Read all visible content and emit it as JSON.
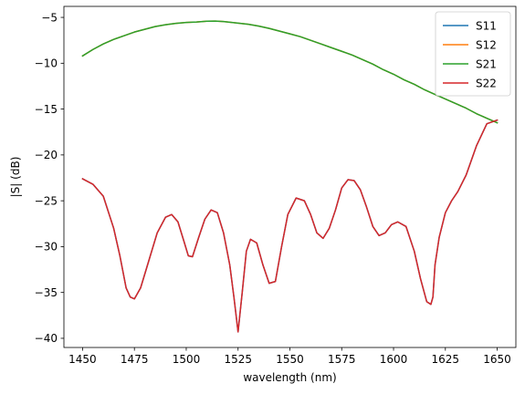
{
  "chart_data": {
    "type": "line",
    "xlabel": "wavelength (nm)",
    "ylabel": "|S| (dB)",
    "xlim": [
      1441,
      1659
    ],
    "ylim": [
      -41,
      -3.8
    ],
    "xticks": [
      1450,
      1475,
      1500,
      1525,
      1550,
      1575,
      1600,
      1625,
      1650
    ],
    "yticks": [
      -40,
      -35,
      -30,
      -25,
      -20,
      -15,
      -10,
      -5
    ],
    "grid": false,
    "legend_position": "top-right",
    "series": [
      {
        "name": "S11",
        "color": "#1f77b4",
        "x": [
          1450,
          1455,
          1460,
          1465,
          1468,
          1471,
          1473,
          1475,
          1478,
          1482,
          1486,
          1490,
          1493,
          1496,
          1499,
          1501,
          1503,
          1506,
          1509,
          1512,
          1515,
          1518,
          1521,
          1523,
          1525,
          1527,
          1529,
          1531,
          1534,
          1537,
          1540,
          1543,
          1546,
          1549,
          1553,
          1557,
          1560,
          1563,
          1566,
          1569,
          1572,
          1575,
          1578,
          1581,
          1584,
          1587,
          1590,
          1593,
          1596,
          1599,
          1602,
          1606,
          1610,
          1613,
          1616,
          1618,
          1619,
          1620,
          1622,
          1625,
          1628,
          1631,
          1635,
          1640,
          1645,
          1650
        ],
        "y": [
          -22.6,
          -23.2,
          -24.5,
          -28,
          -31,
          -34.5,
          -35.5,
          -35.7,
          -34.5,
          -31.5,
          -28.5,
          -26.8,
          -26.5,
          -27.3,
          -29.5,
          -31,
          -31.1,
          -29,
          -27,
          -26,
          -26.3,
          -28.5,
          -32,
          -35.5,
          -39.3,
          -35,
          -30.5,
          -29.2,
          -29.6,
          -32,
          -34,
          -33.8,
          -30,
          -26.5,
          -24.7,
          -25,
          -26.5,
          -28.5,
          -29.1,
          -28,
          -26,
          -23.6,
          -22.7,
          -22.8,
          -23.8,
          -25.7,
          -27.8,
          -28.8,
          -28.5,
          -27.6,
          -27.3,
          -27.8,
          -30.5,
          -33.5,
          -36,
          -36.3,
          -35.5,
          -32,
          -29,
          -26.3,
          -25,
          -24,
          -22.2,
          -19,
          -16.6,
          -16.2
        ]
      },
      {
        "name": "S12",
        "color": "#ff7f0e",
        "x": [
          1450,
          1455,
          1460,
          1465,
          1470,
          1475,
          1480,
          1485,
          1490,
          1495,
          1500,
          1505,
          1510,
          1514,
          1518,
          1522,
          1526,
          1530,
          1535,
          1540,
          1545,
          1550,
          1555,
          1560,
          1565,
          1570,
          1575,
          1580,
          1585,
          1590,
          1595,
          1600,
          1605,
          1610,
          1615,
          1620,
          1625,
          1630,
          1635,
          1640,
          1645,
          1650
        ],
        "y": [
          -9.2,
          -8.5,
          -7.9,
          -7.4,
          -7,
          -6.6,
          -6.3,
          -6,
          -5.8,
          -5.65,
          -5.55,
          -5.5,
          -5.42,
          -5.4,
          -5.45,
          -5.55,
          -5.65,
          -5.75,
          -5.95,
          -6.2,
          -6.5,
          -6.8,
          -7.1,
          -7.5,
          -7.9,
          -8.3,
          -8.7,
          -9.1,
          -9.6,
          -10.1,
          -10.7,
          -11.2,
          -11.8,
          -12.3,
          -12.9,
          -13.4,
          -13.9,
          -14.4,
          -14.9,
          -15.5,
          -16,
          -16.5
        ]
      },
      {
        "name": "S21",
        "color": "#2ca02c",
        "x": [
          1450,
          1455,
          1460,
          1465,
          1470,
          1475,
          1480,
          1485,
          1490,
          1495,
          1500,
          1505,
          1510,
          1514,
          1518,
          1522,
          1526,
          1530,
          1535,
          1540,
          1545,
          1550,
          1555,
          1560,
          1565,
          1570,
          1575,
          1580,
          1585,
          1590,
          1595,
          1600,
          1605,
          1610,
          1615,
          1620,
          1625,
          1630,
          1635,
          1640,
          1645,
          1650
        ],
        "y": [
          -9.2,
          -8.5,
          -7.9,
          -7.4,
          -7,
          -6.6,
          -6.3,
          -6,
          -5.8,
          -5.65,
          -5.55,
          -5.5,
          -5.42,
          -5.4,
          -5.45,
          -5.55,
          -5.65,
          -5.75,
          -5.95,
          -6.2,
          -6.5,
          -6.8,
          -7.1,
          -7.5,
          -7.9,
          -8.3,
          -8.7,
          -9.1,
          -9.6,
          -10.1,
          -10.7,
          -11.2,
          -11.8,
          -12.3,
          -12.9,
          -13.4,
          -13.9,
          -14.4,
          -14.9,
          -15.5,
          -16,
          -16.5
        ]
      },
      {
        "name": "S22",
        "color": "#d62728",
        "x": [
          1450,
          1455,
          1460,
          1465,
          1468,
          1471,
          1473,
          1475,
          1478,
          1482,
          1486,
          1490,
          1493,
          1496,
          1499,
          1501,
          1503,
          1506,
          1509,
          1512,
          1515,
          1518,
          1521,
          1523,
          1525,
          1527,
          1529,
          1531,
          1534,
          1537,
          1540,
          1543,
          1546,
          1549,
          1553,
          1557,
          1560,
          1563,
          1566,
          1569,
          1572,
          1575,
          1578,
          1581,
          1584,
          1587,
          1590,
          1593,
          1596,
          1599,
          1602,
          1606,
          1610,
          1613,
          1616,
          1618,
          1619,
          1620,
          1622,
          1625,
          1628,
          1631,
          1635,
          1640,
          1645,
          1650
        ],
        "y": [
          -22.6,
          -23.2,
          -24.5,
          -28,
          -31,
          -34.5,
          -35.5,
          -35.7,
          -34.5,
          -31.5,
          -28.5,
          -26.8,
          -26.5,
          -27.3,
          -29.5,
          -31,
          -31.1,
          -29,
          -27,
          -26,
          -26.3,
          -28.5,
          -32,
          -35.5,
          -39.3,
          -35,
          -30.5,
          -29.2,
          -29.6,
          -32,
          -34,
          -33.8,
          -30,
          -26.5,
          -24.7,
          -25,
          -26.5,
          -28.5,
          -29.1,
          -28,
          -26,
          -23.6,
          -22.7,
          -22.8,
          -23.8,
          -25.7,
          -27.8,
          -28.8,
          -28.5,
          -27.6,
          -27.3,
          -27.8,
          -30.5,
          -33.5,
          -36,
          -36.3,
          -35.5,
          -32,
          -29,
          -26.3,
          -25,
          -24,
          -22.2,
          -19,
          -16.6,
          -16.2
        ]
      }
    ]
  }
}
